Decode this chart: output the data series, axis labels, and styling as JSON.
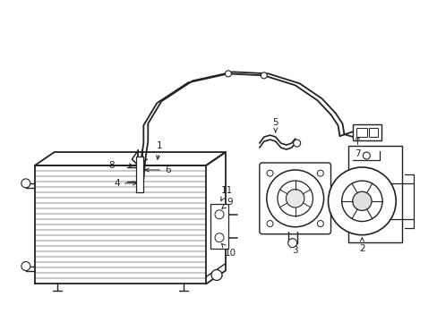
{
  "background_color": "#ffffff",
  "line_color": "#222222",
  "figsize": [
    4.89,
    3.6
  ],
  "dpi": 100,
  "font_size": 7.5
}
